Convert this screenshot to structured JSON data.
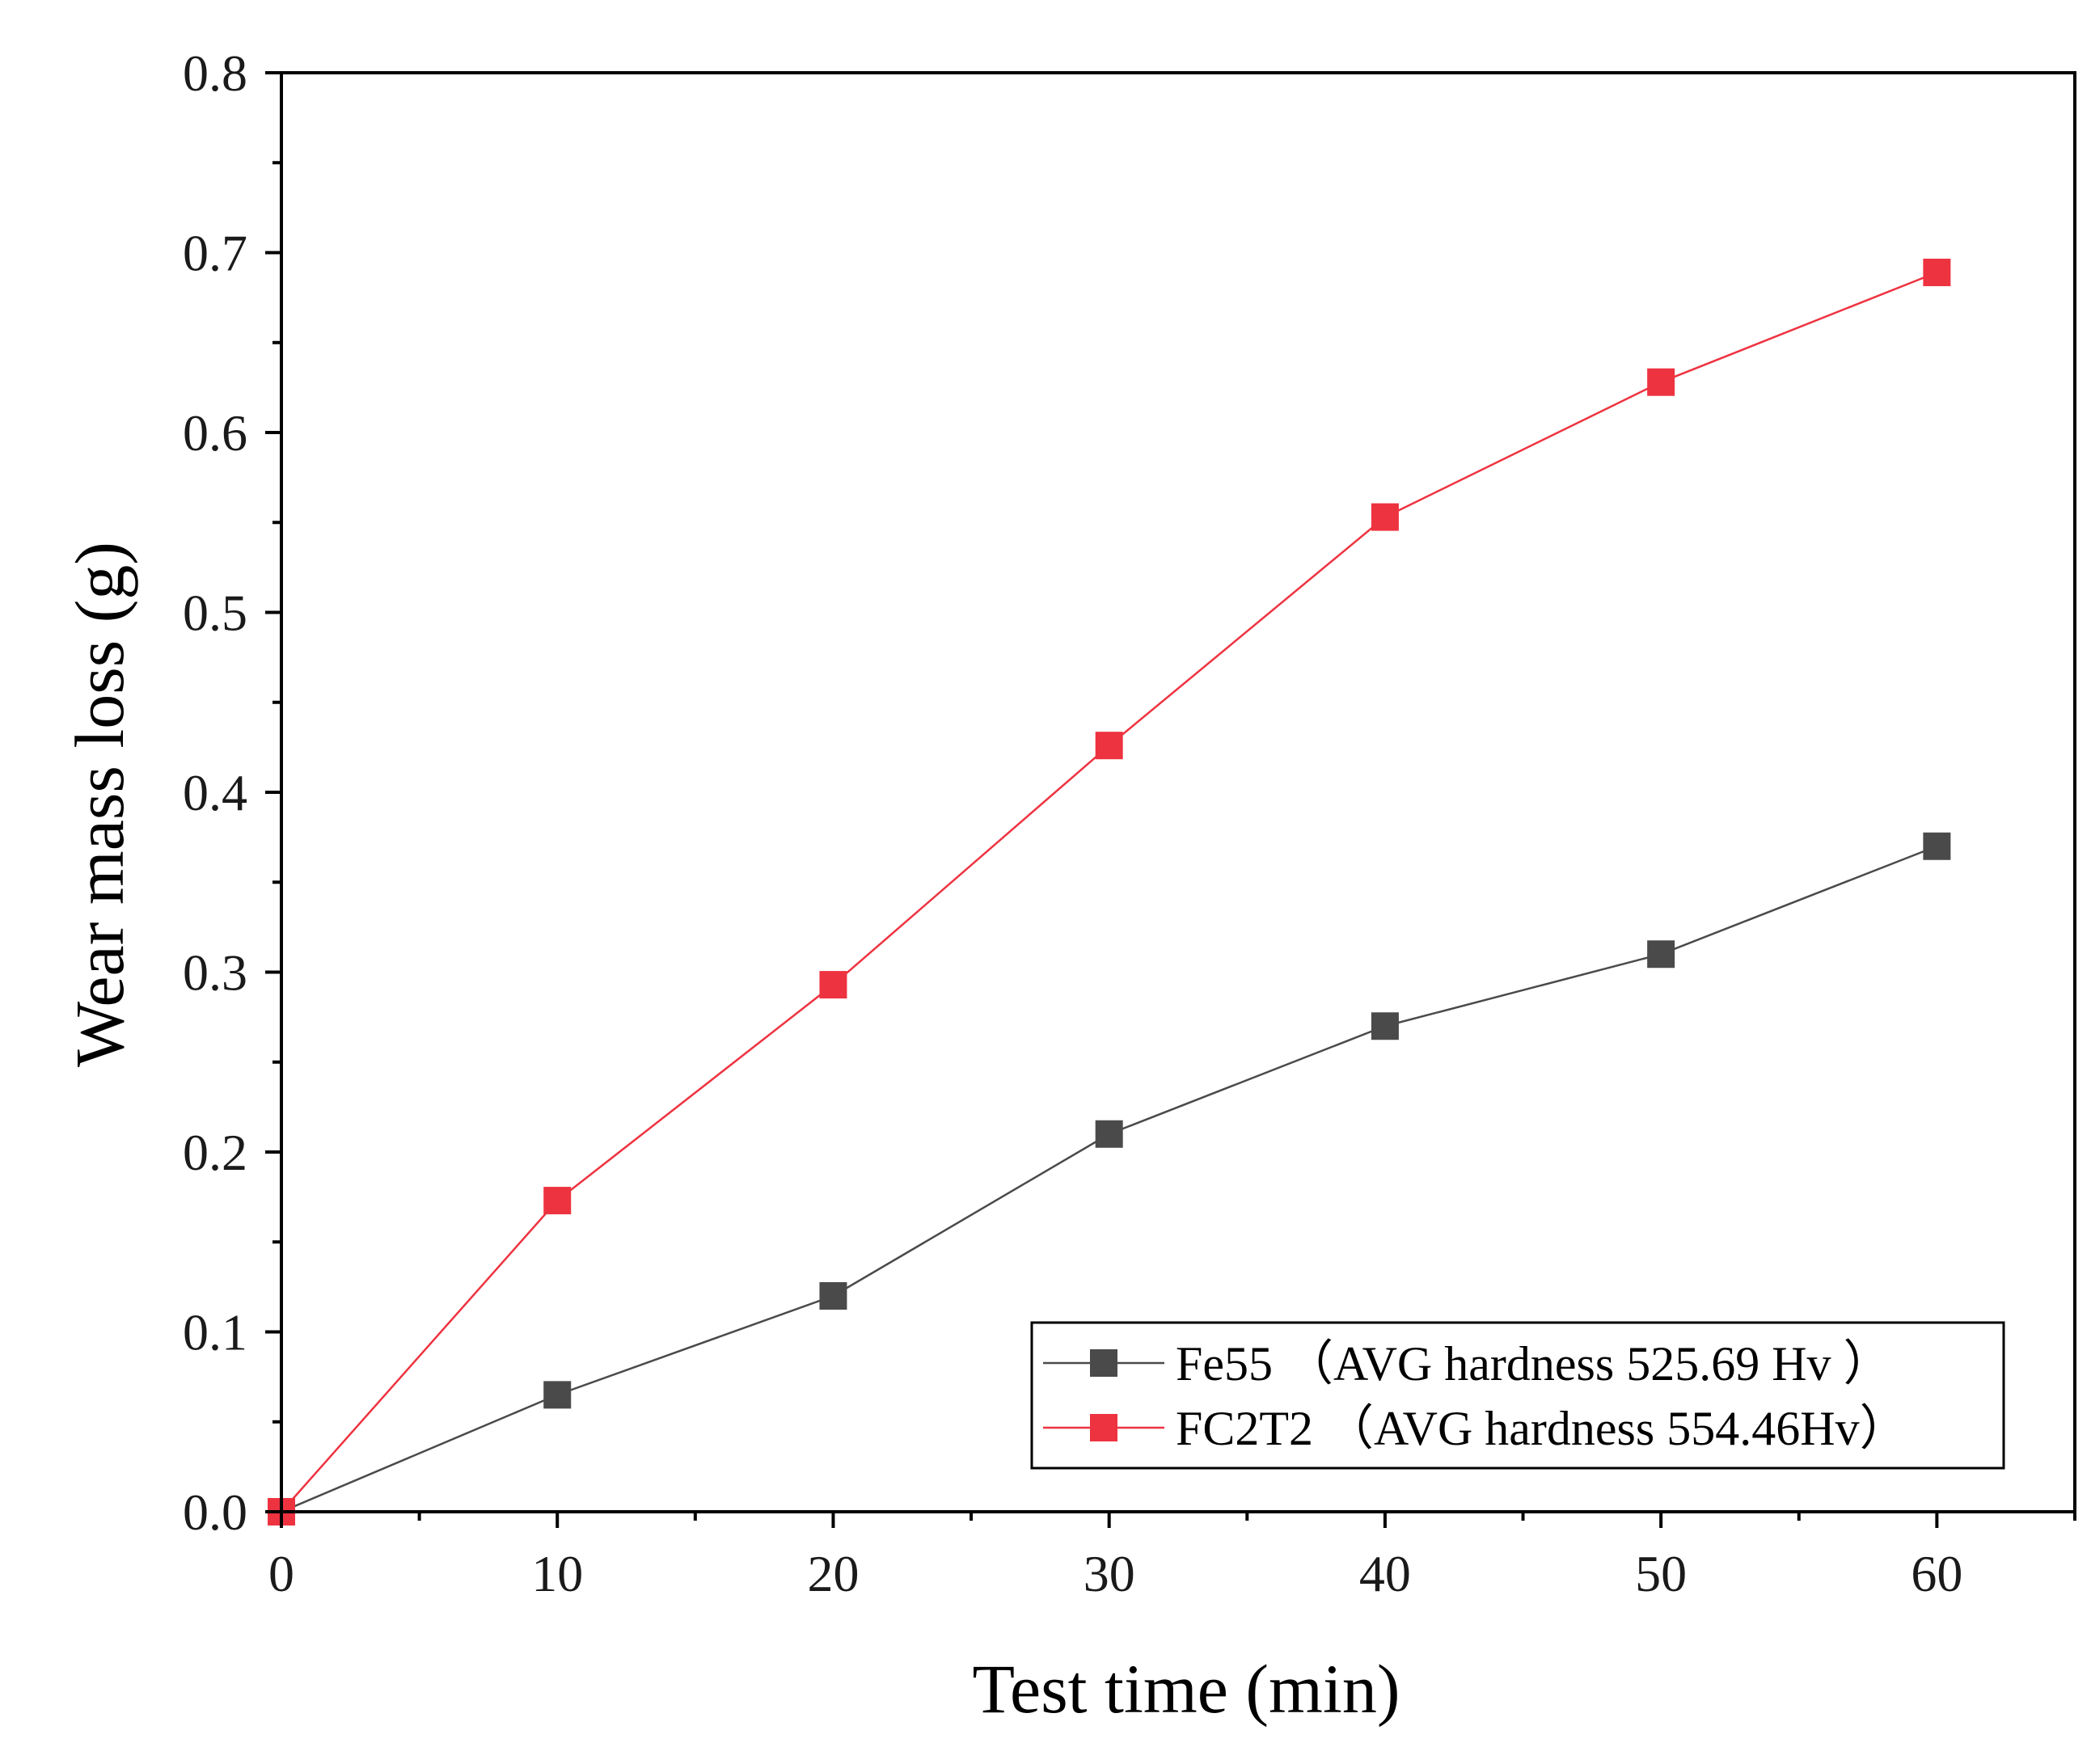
{
  "chart_data": {
    "type": "line",
    "title": "",
    "xlabel": "Test time (min)",
    "ylabel": "Wear mass loss (g)",
    "xlim": [
      0,
      65
    ],
    "ylim": [
      0,
      0.8
    ],
    "xticks": [
      0,
      10,
      20,
      30,
      40,
      50,
      60
    ],
    "xtick_labels": [
      "0",
      "10",
      "20",
      "30",
      "40",
      "50",
      "60"
    ],
    "yticks": [
      0,
      0.1,
      0.2,
      0.3,
      0.4,
      0.5,
      0.6,
      0.7,
      0.8
    ],
    "ytick_labels": [
      "0.0",
      "0.1",
      "0.2",
      "0.3",
      "0.4",
      "0.5",
      "0.6",
      "0.7",
      "0.8"
    ],
    "grid": false,
    "legend_position": "bottom-right",
    "x": [
      0,
      10,
      20,
      30,
      40,
      50,
      60
    ],
    "series": [
      {
        "name": "Fe55 （AVG hardness 525.69 Hv ）",
        "color": "#4a4a4a",
        "marker": "square",
        "values": [
          0,
          0.065,
          0.12,
          0.21,
          0.27,
          0.31,
          0.37
        ]
      },
      {
        "name": "FC2T2 （AVG hardness 554.46Hv）",
        "color": "#ee3340",
        "marker": "square",
        "values": [
          0,
          0.173,
          0.293,
          0.426,
          0.553,
          0.628,
          0.689
        ]
      }
    ]
  }
}
